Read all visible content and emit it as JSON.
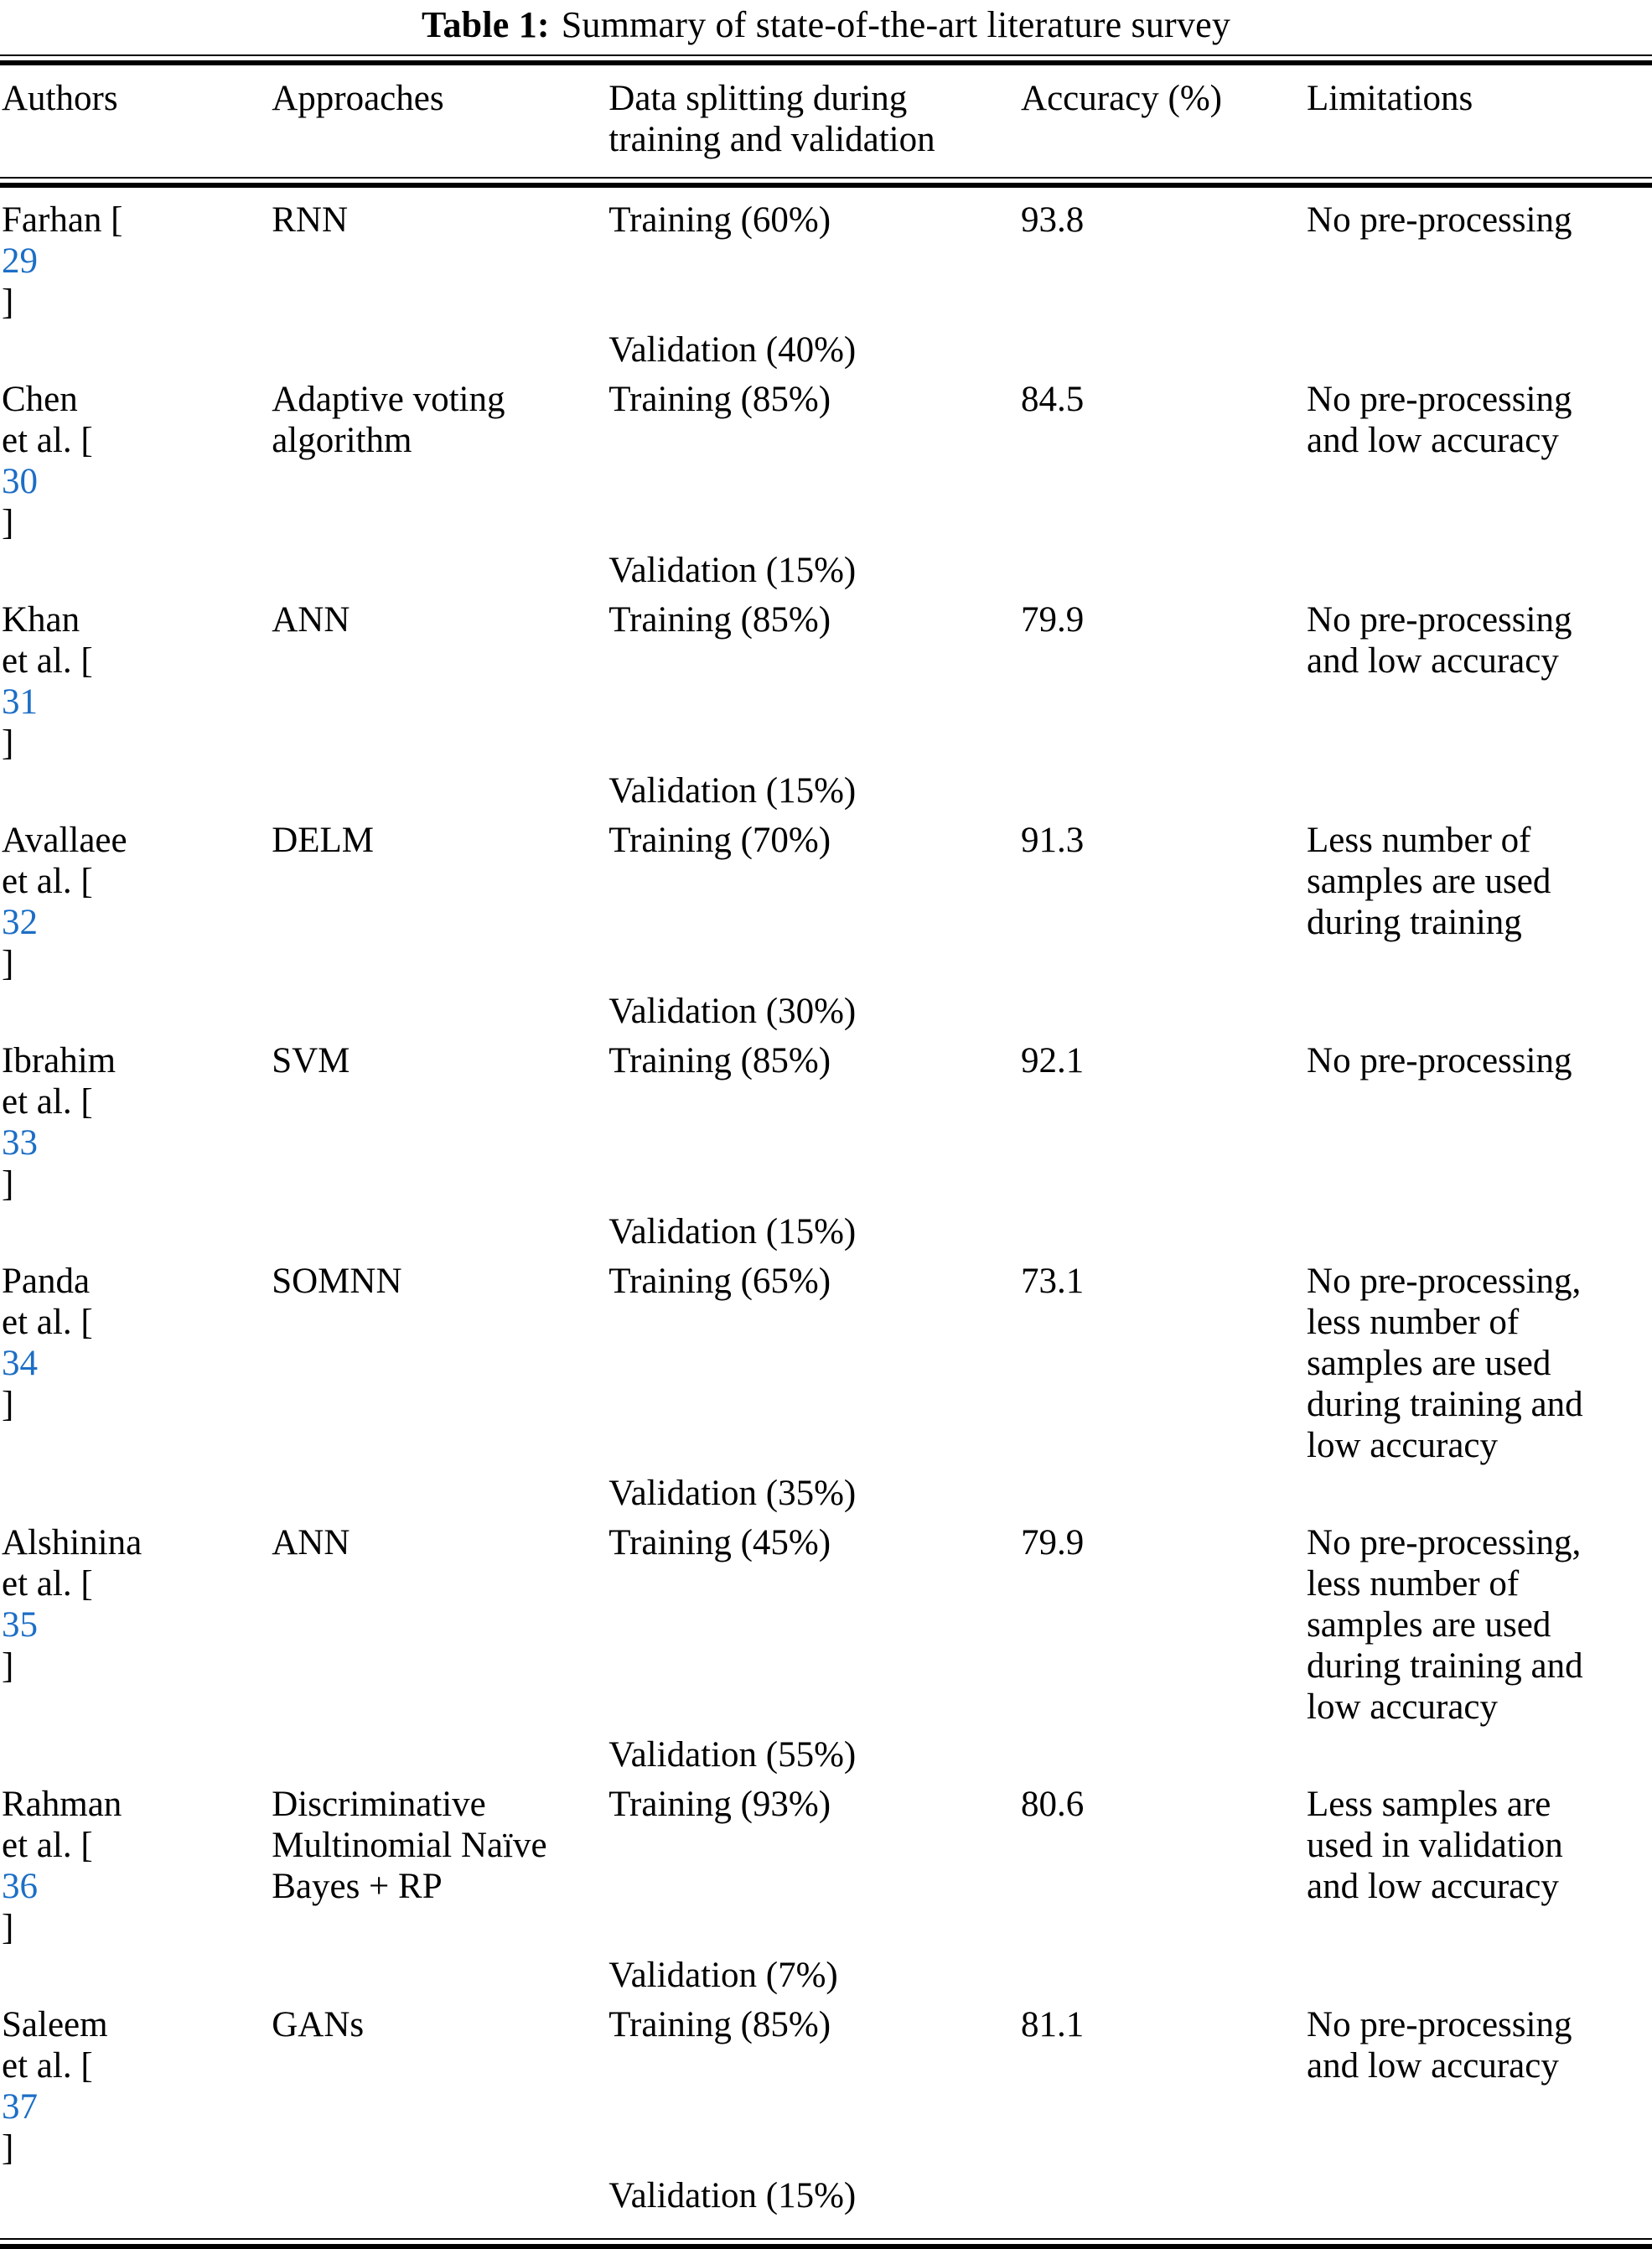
{
  "title": {
    "label": "Table 1:",
    "text": "Summary of state-of-the-art literature survey"
  },
  "colors": {
    "citation_blue": "#1C6EC6",
    "text": "#000000",
    "background": "#FFFFFF",
    "rule": "#000000"
  },
  "header": {
    "authors": "Authors",
    "approaches": "Approaches",
    "split_line1": "Data splitting during",
    "split_line2": "training and validation",
    "accuracy": "Accuracy (%)",
    "limitations": "Limitations"
  },
  "rows": [
    {
      "author_lines": [
        "Farhan"
      ],
      "ref": "29",
      "approach_lines": [
        "RNN"
      ],
      "training": "Training (60%)",
      "validation": "Validation (40%)",
      "accuracy": "93.8",
      "limitation_lines": [
        "No pre-processing"
      ]
    },
    {
      "author_lines": [
        "Chen",
        "et al."
      ],
      "ref": "30",
      "approach_lines": [
        "Adaptive voting",
        "algorithm"
      ],
      "training": "Training (85%)",
      "validation": "Validation (15%)",
      "accuracy": "84.5",
      "limitation_lines": [
        "No pre-processing",
        "and low accuracy"
      ]
    },
    {
      "author_lines": [
        "Khan",
        "et al."
      ],
      "ref": "31",
      "approach_lines": [
        "ANN"
      ],
      "training": "Training (85%)",
      "validation": "Validation (15%)",
      "accuracy": "79.9",
      "limitation_lines": [
        "No pre-processing",
        "and low accuracy"
      ]
    },
    {
      "author_lines": [
        "Avallaee",
        "et al."
      ],
      "ref": "32",
      "approach_lines": [
        "DELM"
      ],
      "training": "Training (70%)",
      "validation": "Validation (30%)",
      "accuracy": "91.3",
      "limitation_lines": [
        "Less number of",
        "samples are used",
        "during training"
      ]
    },
    {
      "author_lines": [
        "Ibrahim",
        "et al."
      ],
      "ref": "33",
      "approach_lines": [
        "SVM"
      ],
      "training": "Training (85%)",
      "validation": "Validation (15%)",
      "accuracy": "92.1",
      "limitation_lines": [
        "No pre-processing"
      ]
    },
    {
      "author_lines": [
        "Panda",
        "et al."
      ],
      "ref": "34",
      "approach_lines": [
        "SOMNN"
      ],
      "training": "Training (65%)",
      "validation": "Validation (35%)",
      "accuracy": "73.1",
      "limitation_lines": [
        "No pre-processing,",
        "less number of",
        "samples are used",
        "during training and",
        "low accuracy"
      ]
    },
    {
      "author_lines": [
        "Alshinina",
        "et al."
      ],
      "ref": "35",
      "approach_lines": [
        "ANN"
      ],
      "training": "Training (45%)",
      "validation": "Validation (55%)",
      "accuracy": "79.9",
      "limitation_lines": [
        "No pre-processing,",
        "less number of",
        "samples are used",
        "during training and",
        "low accuracy"
      ]
    },
    {
      "author_lines": [
        "Rahman",
        "et al."
      ],
      "ref": "36",
      "approach_lines": [
        "Discriminative",
        "Multinomial Naïve",
        "Bayes + RP"
      ],
      "training": "Training (93%)",
      "validation": "Validation (7%)",
      "accuracy": "80.6",
      "limitation_lines": [
        "Less samples are",
        "used in validation",
        "and low accuracy"
      ]
    },
    {
      "author_lines": [
        "Saleem",
        "et al."
      ],
      "ref": "37",
      "approach_lines": [
        "GANs"
      ],
      "training": "Training (85%)",
      "validation": "Validation (15%)",
      "accuracy": "81.1",
      "limitation_lines": [
        "No pre-processing",
        "and low accuracy"
      ]
    }
  ]
}
